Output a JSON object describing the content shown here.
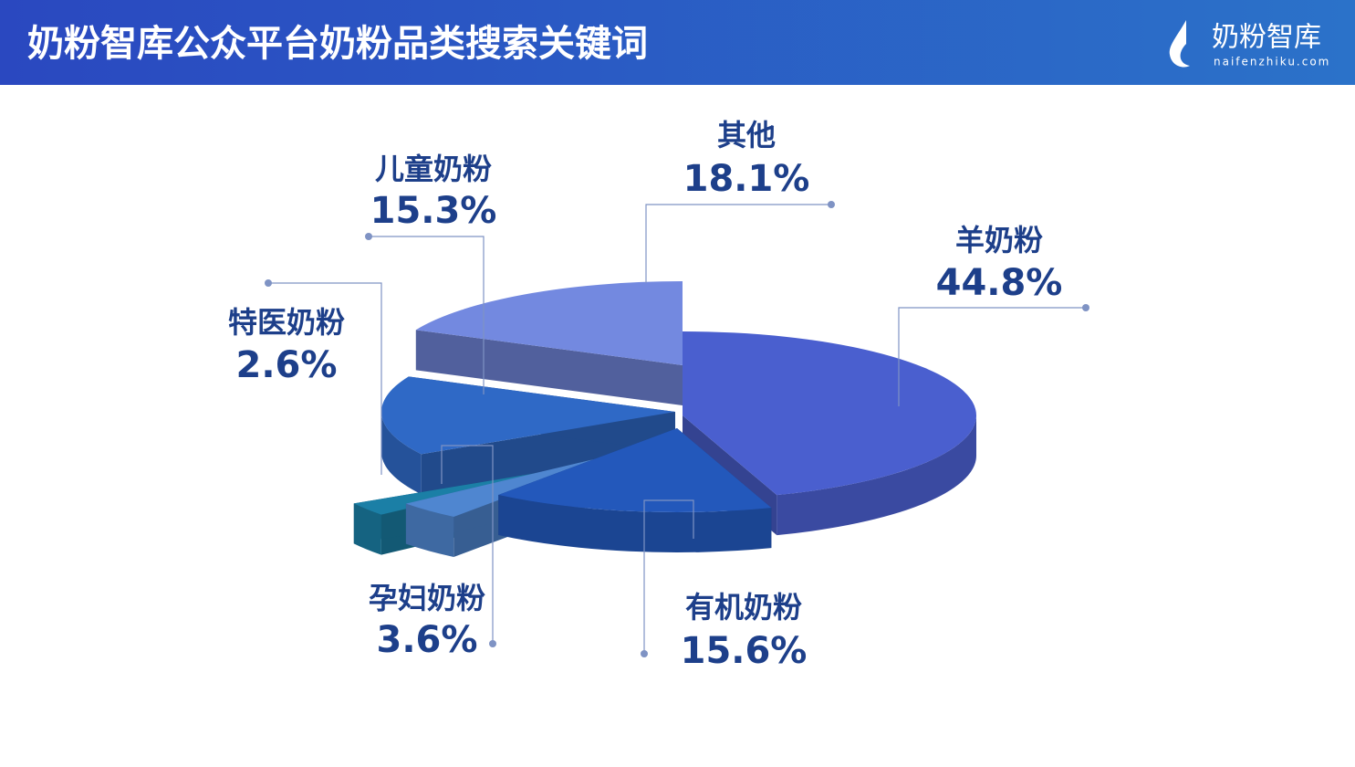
{
  "chart_data": {
    "type": "pie3d",
    "title": "奶粉智库公众平台奶粉品类搜索关键词",
    "logo_text": "奶粉智库",
    "logo_subtitle": "naifenzhiku.com",
    "categories": [
      "羊奶粉",
      "有机奶粉",
      "孕妇奶粉",
      "特医奶粉",
      "儿童奶粉",
      "其他"
    ],
    "values": [
      44.8,
      15.6,
      3.6,
      2.6,
      15.3,
      18.1
    ],
    "value_labels": [
      "44.8%",
      "15.6%",
      "3.6%",
      "2.6%",
      "15.3%",
      "18.1%"
    ],
    "colors": [
      "#4a5fcf",
      "#2358bb",
      "#4f86d0",
      "#1b7fa6",
      "#2f69c6",
      "#7389e0"
    ]
  }
}
